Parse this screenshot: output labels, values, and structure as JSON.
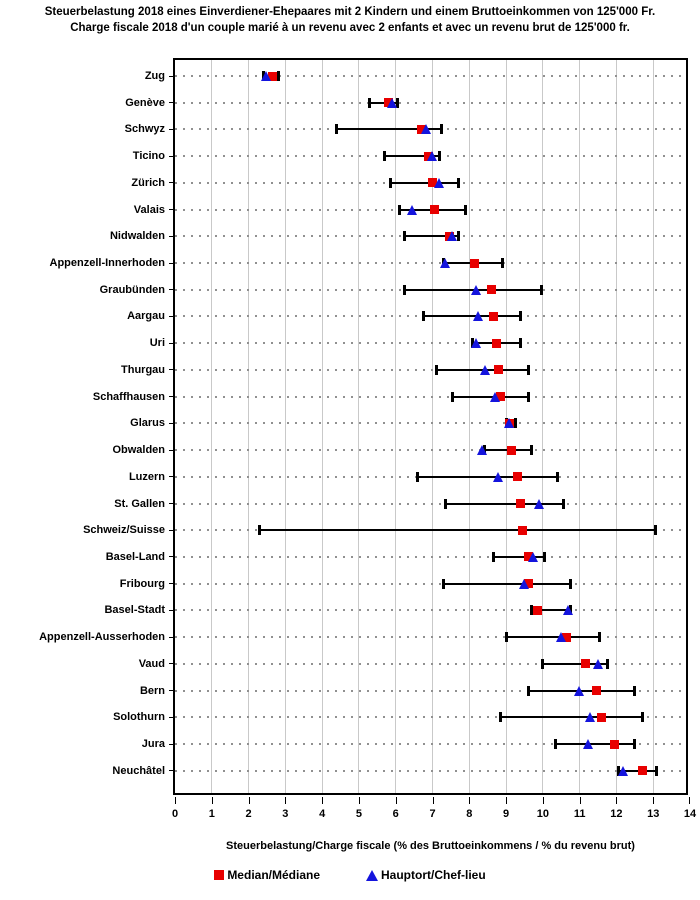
{
  "title": {
    "line1": "Steuerbelastung 2018 eines Einverdiener-Ehepaares mit 2 Kindern und einem Bruttoeinkommen von 125'000 Fr.",
    "line2": "Charge fiscale 2018 d'un couple marié à un revenu avec 2 enfants et avec un revenu brut de 125'000 fr."
  },
  "chart_data": {
    "type": "scatter",
    "variant": "horizontal-range-dot-plot",
    "xlabel": "Steuerbelastung/Charge fiscale (% des Bruttoeinkommens / % du revenu brut)",
    "xlim": [
      0,
      14
    ],
    "xticks": [
      0,
      1,
      2,
      3,
      4,
      5,
      6,
      7,
      8,
      9,
      10,
      11,
      12,
      13,
      14
    ],
    "grid": "vertical-gridlines-plus-dotted-row-lines",
    "legend_position": "bottom",
    "legend": [
      {
        "label": "Median/Médiane",
        "marker": "square",
        "color": "#e80000"
      },
      {
        "label": "Hauptort/Chef-lieu",
        "marker": "triangle",
        "color": "#1414dd"
      }
    ],
    "rows": [
      {
        "label": "Zug",
        "min": 2.4,
        "max": 2.8,
        "median": 2.65,
        "hauptort": 2.5
      },
      {
        "label": "Genève",
        "min": 5.3,
        "max": 6.05,
        "median": 5.8,
        "hauptort": 5.9
      },
      {
        "label": "Schwyz",
        "min": 4.4,
        "max": 7.25,
        "median": 6.7,
        "hauptort": 6.85
      },
      {
        "label": "Ticino",
        "min": 5.7,
        "max": 7.2,
        "median": 6.9,
        "hauptort": 7.0
      },
      {
        "label": "Zürich",
        "min": 5.85,
        "max": 7.7,
        "median": 7.0,
        "hauptort": 7.2
      },
      {
        "label": "Valais",
        "min": 6.1,
        "max": 7.9,
        "median": 7.05,
        "hauptort": 6.45
      },
      {
        "label": "Nidwalden",
        "min": 6.25,
        "max": 7.7,
        "median": 7.45,
        "hauptort": 7.55
      },
      {
        "label": "Appenzell-Innerhoden",
        "min": 7.3,
        "max": 8.9,
        "median": 8.15,
        "hauptort": 7.35
      },
      {
        "label": "Graubünden",
        "min": 6.25,
        "max": 9.95,
        "median": 8.6,
        "hauptort": 8.2
      },
      {
        "label": "Aargau",
        "min": 6.75,
        "max": 9.4,
        "median": 8.65,
        "hauptort": 8.25
      },
      {
        "label": "Uri",
        "min": 8.1,
        "max": 9.4,
        "median": 8.75,
        "hauptort": 8.2
      },
      {
        "label": "Thurgau",
        "min": 7.1,
        "max": 9.6,
        "median": 8.8,
        "hauptort": 8.45
      },
      {
        "label": "Schaffhausen",
        "min": 7.55,
        "max": 9.6,
        "median": 8.85,
        "hauptort": 8.7
      },
      {
        "label": "Glarus",
        "min": 9.0,
        "max": 9.25,
        "median": 9.1,
        "hauptort": 9.1
      },
      {
        "label": "Obwalden",
        "min": 8.4,
        "max": 9.7,
        "median": 9.15,
        "hauptort": 8.35
      },
      {
        "label": "Luzern",
        "min": 6.6,
        "max": 10.4,
        "median": 9.3,
        "hauptort": 8.8
      },
      {
        "label": "St. Gallen",
        "min": 7.35,
        "max": 10.55,
        "median": 9.4,
        "hauptort": 9.9
      },
      {
        "label": "Schweiz/Suisse",
        "min": 2.3,
        "max": 13.05,
        "median": 9.45,
        "hauptort": null
      },
      {
        "label": "Basel-Land",
        "min": 8.65,
        "max": 10.05,
        "median": 9.6,
        "hauptort": 9.75
      },
      {
        "label": "Fribourg",
        "min": 7.3,
        "max": 10.75,
        "median": 9.6,
        "hauptort": 9.5
      },
      {
        "label": "Basel-Stadt",
        "min": 9.7,
        "max": 10.75,
        "median": 9.85,
        "hauptort": 10.7
      },
      {
        "label": "Appenzell-Ausserhoden",
        "min": 9.0,
        "max": 11.55,
        "median": 10.65,
        "hauptort": 10.5
      },
      {
        "label": "Vaud",
        "min": 10.0,
        "max": 11.75,
        "median": 11.15,
        "hauptort": 11.5
      },
      {
        "label": "Bern",
        "min": 9.6,
        "max": 12.5,
        "median": 11.45,
        "hauptort": 11.0
      },
      {
        "label": "Solothurn",
        "min": 8.85,
        "max": 12.7,
        "median": 11.6,
        "hauptort": 11.3
      },
      {
        "label": "Jura",
        "min": 10.35,
        "max": 12.5,
        "median": 11.95,
        "hauptort": 11.25
      },
      {
        "label": "Neuchâtel",
        "min": 12.05,
        "max": 13.1,
        "median": 12.7,
        "hauptort": 12.2
      }
    ]
  },
  "colors": {
    "median": "#e80000",
    "hauptort": "#1414dd",
    "gridline": "#c9c9c9",
    "row_dots": "#909090",
    "axis": "#000000",
    "background": "#ffffff"
  }
}
